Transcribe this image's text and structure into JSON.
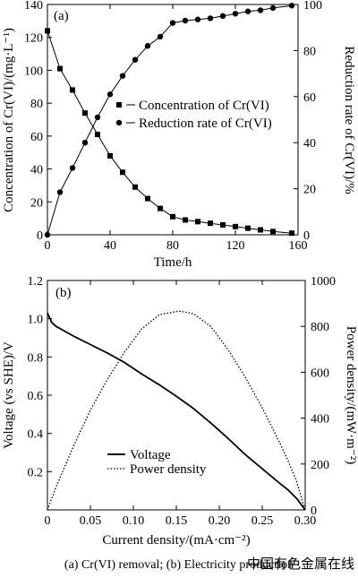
{
  "chart_data": [
    {
      "type": "line",
      "panel_label": "(a)",
      "xlabel": "Time/h",
      "ylabel_left": "Concentration of Cr(VI)/(mg·L⁻¹)",
      "ylabel_right": "Reduction rate of Cr(VI)/%",
      "xlim": [
        0,
        160
      ],
      "ylim_left": [
        0,
        140
      ],
      "ylim_right": [
        0,
        100
      ],
      "xticks": [
        "0",
        "40",
        "80",
        "120",
        "160"
      ],
      "yticks_left": [
        "0",
        "20",
        "40",
        "60",
        "80",
        "100",
        "120",
        "140"
      ],
      "yticks_right": [
        "0",
        "20",
        "40",
        "60",
        "80",
        "100"
      ],
      "grid": false,
      "legend_position": "center-right",
      "series": [
        {
          "name": "Concentration of Cr(VI)",
          "marker": "square",
          "axis": "left",
          "x": [
            0,
            8,
            16,
            24,
            32,
            40,
            48,
            56,
            64,
            72,
            80,
            88,
            96,
            104,
            112,
            120,
            128,
            136,
            144,
            156
          ],
          "values": [
            124,
            101,
            88,
            74,
            61,
            48,
            38,
            29,
            22,
            16,
            11,
            9,
            8,
            7,
            6,
            5,
            4,
            3,
            2,
            1
          ]
        },
        {
          "name": "Reduction rate of Cr(VI)",
          "marker": "circle",
          "axis": "right",
          "x": [
            0,
            8,
            16,
            24,
            32,
            40,
            48,
            56,
            64,
            72,
            80,
            88,
            96,
            104,
            112,
            120,
            128,
            136,
            144,
            156
          ],
          "values": [
            0,
            18.5,
            29,
            40,
            51,
            61,
            69,
            76,
            82,
            86,
            92,
            93,
            93.5,
            94,
            95,
            96,
            97,
            97.5,
            98.5,
            99.5
          ]
        }
      ]
    },
    {
      "type": "line",
      "panel_label": "(b)",
      "xlabel": "Current density/(mA·cm⁻²)",
      "ylabel_left": "Voltage (vs SHE)/V",
      "ylabel_right": "Power density/(mW·m⁻²)",
      "xlim": [
        0,
        0.3
      ],
      "ylim_left": [
        0,
        1.2
      ],
      "ylim_right": [
        0,
        1000
      ],
      "xticks": [
        "0",
        "0.05",
        "0.10",
        "0.15",
        "0.20",
        "0.25",
        "0.30"
      ],
      "yticks_left": [
        "0.2",
        "0.4",
        "0.6",
        "0.8",
        "1.0",
        "1.2"
      ],
      "yticks_right": [
        "0",
        "200",
        "400",
        "600",
        "800",
        "1000"
      ],
      "grid": false,
      "legend_position": "lower-left",
      "series": [
        {
          "name": "Voltage",
          "style": "solid",
          "axis": "left",
          "x": [
            0,
            0.005,
            0.01,
            0.02,
            0.03,
            0.05,
            0.07,
            0.09,
            0.11,
            0.13,
            0.15,
            0.17,
            0.19,
            0.21,
            0.23,
            0.25,
            0.27,
            0.28,
            0.29,
            0.295,
            0.3
          ],
          "values": [
            1.03,
            0.98,
            0.96,
            0.935,
            0.91,
            0.865,
            0.82,
            0.77,
            0.71,
            0.655,
            0.595,
            0.53,
            0.455,
            0.375,
            0.29,
            0.215,
            0.14,
            0.105,
            0.06,
            0.03,
            0.0
          ]
        },
        {
          "name": "Power density",
          "style": "dotted",
          "axis": "right",
          "x": [
            0,
            0.01,
            0.03,
            0.05,
            0.07,
            0.09,
            0.11,
            0.13,
            0.15,
            0.155,
            0.17,
            0.19,
            0.21,
            0.23,
            0.25,
            0.27,
            0.28,
            0.29,
            0.295,
            0.3
          ],
          "values": [
            0,
            100,
            275,
            435,
            570,
            690,
            790,
            850,
            865,
            866,
            855,
            800,
            700,
            580,
            445,
            295,
            215,
            125,
            60,
            0
          ]
        }
      ]
    }
  ],
  "caption": "(a) Cr(VI) removal; (b) Electricity production",
  "watermark": "中国有色金属在线"
}
